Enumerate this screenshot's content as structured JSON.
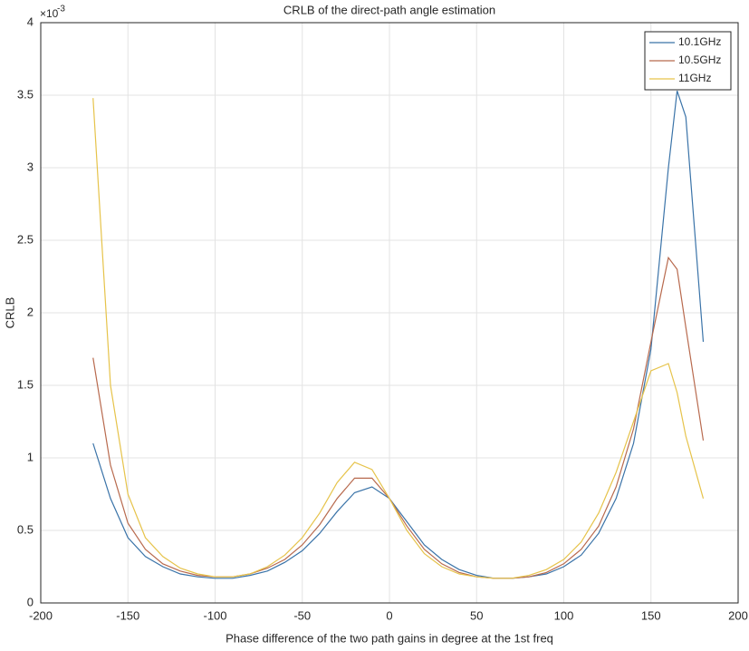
{
  "chart_data": {
    "type": "line",
    "title": "CRLB of the direct-path angle estimation",
    "xlabel": "Phase difference of the two path gains in degree at the 1st freq",
    "ylabel": "CRLB",
    "y_exponent_base": "×10",
    "y_exponent": "-3",
    "x": [
      -170,
      -160,
      -150,
      -140,
      -130,
      -120,
      -110,
      -100,
      -90,
      -80,
      -70,
      -60,
      -50,
      -40,
      -30,
      -20,
      -10,
      0,
      10,
      20,
      30,
      40,
      50,
      60,
      70,
      80,
      90,
      100,
      110,
      120,
      130,
      140,
      150,
      160,
      165,
      170,
      180
    ],
    "series": [
      {
        "name": "10.1GHz",
        "color": "#3a73a8",
        "values": [
          1.1,
          0.72,
          0.45,
          0.32,
          0.25,
          0.2,
          0.18,
          0.17,
          0.17,
          0.19,
          0.22,
          0.28,
          0.36,
          0.48,
          0.63,
          0.76,
          0.8,
          0.72,
          0.56,
          0.4,
          0.3,
          0.23,
          0.19,
          0.17,
          0.17,
          0.18,
          0.2,
          0.25,
          0.33,
          0.48,
          0.72,
          1.1,
          1.75,
          3.0,
          3.53,
          3.35,
          1.8
        ]
      },
      {
        "name": "10.5GHz",
        "color": "#b86a4e",
        "values": [
          1.69,
          0.95,
          0.55,
          0.37,
          0.27,
          0.22,
          0.19,
          0.18,
          0.18,
          0.2,
          0.24,
          0.3,
          0.4,
          0.54,
          0.72,
          0.86,
          0.86,
          0.72,
          0.53,
          0.37,
          0.27,
          0.21,
          0.18,
          0.17,
          0.17,
          0.18,
          0.21,
          0.27,
          0.37,
          0.53,
          0.8,
          1.2,
          1.8,
          2.38,
          2.3,
          1.9,
          1.12
        ]
      },
      {
        "name": "11GHz",
        "color": "#e6c34a",
        "values": [
          3.48,
          1.5,
          0.75,
          0.45,
          0.32,
          0.24,
          0.2,
          0.18,
          0.18,
          0.2,
          0.25,
          0.33,
          0.45,
          0.62,
          0.83,
          0.97,
          0.92,
          0.72,
          0.5,
          0.34,
          0.25,
          0.2,
          0.18,
          0.17,
          0.17,
          0.19,
          0.23,
          0.3,
          0.42,
          0.62,
          0.9,
          1.25,
          1.6,
          1.65,
          1.45,
          1.15,
          0.72
        ]
      }
    ],
    "xlim": [
      -200,
      200
    ],
    "xticks": [
      -200,
      -150,
      -100,
      -50,
      0,
      50,
      100,
      150,
      200
    ],
    "ylim": [
      0,
      4
    ],
    "yticks": [
      0,
      0.5,
      1,
      1.5,
      2,
      2.5,
      3,
      3.5,
      4
    ],
    "grid": true,
    "legend": "northeast"
  }
}
